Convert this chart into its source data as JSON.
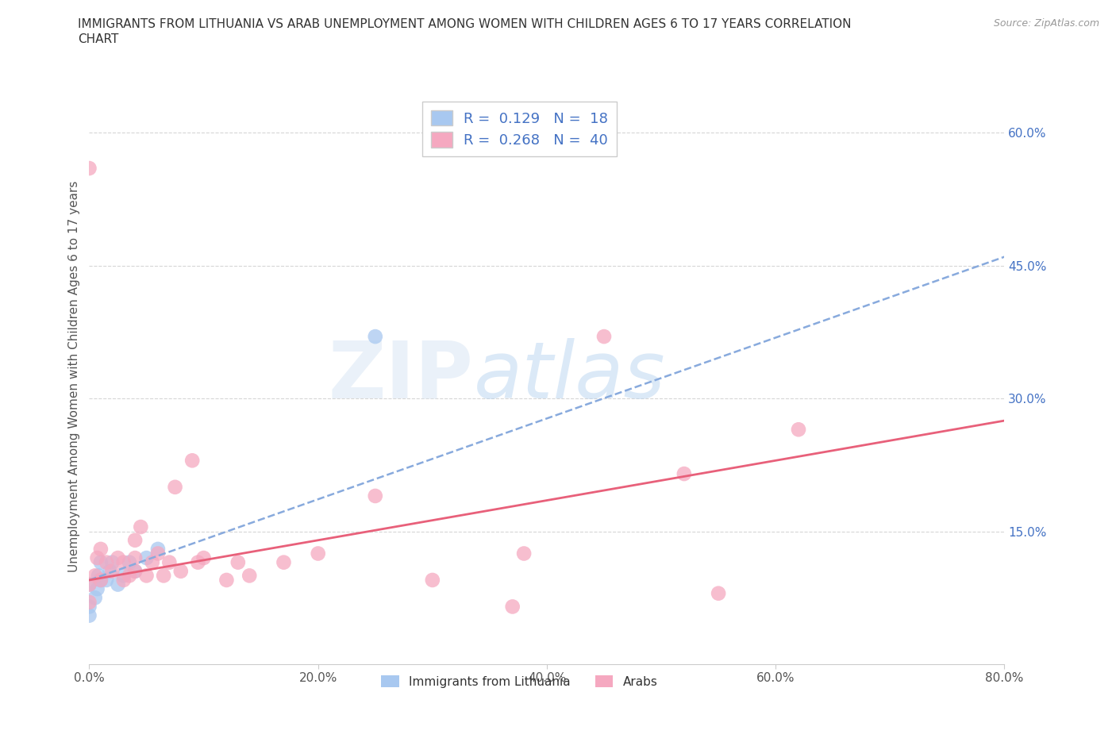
{
  "title": "IMMIGRANTS FROM LITHUANIA VS ARAB UNEMPLOYMENT AMONG WOMEN WITH CHILDREN AGES 6 TO 17 YEARS CORRELATION\nCHART",
  "source_text": "Source: ZipAtlas.com",
  "ylabel": "Unemployment Among Women with Children Ages 6 to 17 years",
  "xlim": [
    0.0,
    0.8
  ],
  "ylim": [
    0.0,
    0.65
  ],
  "xticks": [
    0.0,
    0.2,
    0.4,
    0.6,
    0.8
  ],
  "xticklabels": [
    "0.0%",
    "20.0%",
    "40.0%",
    "60.0%",
    "80.0%"
  ],
  "ytick_positions": [
    0.15,
    0.3,
    0.45,
    0.6
  ],
  "yticklabels": [
    "15.0%",
    "30.0%",
    "45.0%",
    "60.0%"
  ],
  "watermark_ZIP": "ZIP",
  "watermark_atlas": "atlas",
  "blue_color": "#a8c8f0",
  "pink_color": "#f5a8c0",
  "blue_line_color": "#88aadd",
  "pink_line_color": "#e8607a",
  "legend_blue_R": "0.129",
  "legend_blue_N": "18",
  "legend_pink_R": "0.268",
  "legend_pink_N": "40",
  "blue_line_x0": 0.0,
  "blue_line_y0": 0.095,
  "blue_line_x1": 0.8,
  "blue_line_y1": 0.46,
  "pink_line_x0": 0.0,
  "pink_line_x1": 0.8,
  "pink_line_y0": 0.095,
  "pink_line_y1": 0.275,
  "blue_x": [
    0.0,
    0.0,
    0.0,
    0.005,
    0.007,
    0.008,
    0.01,
    0.01,
    0.015,
    0.018,
    0.02,
    0.025,
    0.03,
    0.035,
    0.04,
    0.05,
    0.06,
    0.25
  ],
  "blue_y": [
    0.055,
    0.065,
    0.09,
    0.075,
    0.085,
    0.1,
    0.095,
    0.115,
    0.095,
    0.105,
    0.115,
    0.09,
    0.1,
    0.115,
    0.105,
    0.12,
    0.13,
    0.37
  ],
  "pink_x": [
    0.0,
    0.0,
    0.0,
    0.005,
    0.007,
    0.01,
    0.01,
    0.015,
    0.02,
    0.025,
    0.03,
    0.03,
    0.035,
    0.04,
    0.04,
    0.04,
    0.045,
    0.05,
    0.055,
    0.06,
    0.065,
    0.07,
    0.075,
    0.08,
    0.09,
    0.095,
    0.1,
    0.12,
    0.13,
    0.14,
    0.17,
    0.2,
    0.25,
    0.3,
    0.37,
    0.38,
    0.45,
    0.52,
    0.55,
    0.62
  ],
  "pink_y": [
    0.07,
    0.09,
    0.56,
    0.1,
    0.12,
    0.095,
    0.13,
    0.115,
    0.105,
    0.12,
    0.095,
    0.115,
    0.1,
    0.105,
    0.12,
    0.14,
    0.155,
    0.1,
    0.115,
    0.125,
    0.1,
    0.115,
    0.2,
    0.105,
    0.23,
    0.115,
    0.12,
    0.095,
    0.115,
    0.1,
    0.115,
    0.125,
    0.19,
    0.095,
    0.065,
    0.125,
    0.37,
    0.215,
    0.08,
    0.265
  ],
  "background_color": "#ffffff",
  "grid_color": "#cccccc",
  "title_fontsize": 11,
  "label_fontsize": 11,
  "tick_fontsize": 11,
  "legend_fontsize": 13
}
